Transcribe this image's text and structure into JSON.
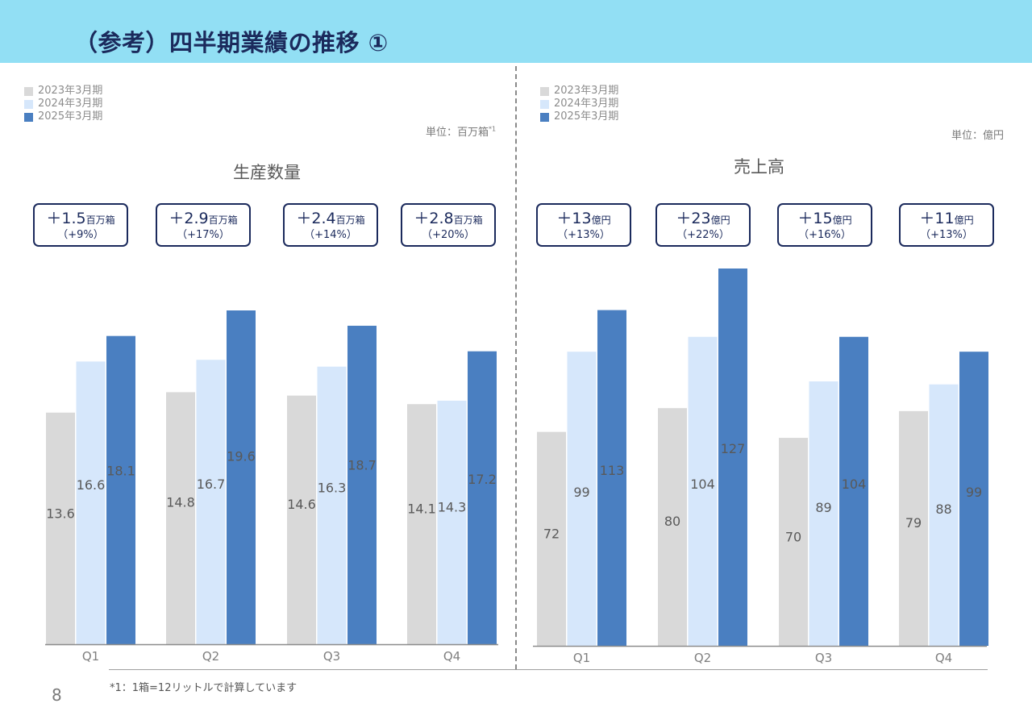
{
  "page": {
    "title": "（参考）四半期業績の推移 ①",
    "page_number": "8",
    "footnote": "*1：1箱=12リットルで計算しています"
  },
  "legend": [
    "2023年3月期",
    "2024年3月期",
    "2025年3月期"
  ],
  "colors": {
    "fy2023": "#d9d9d9",
    "fy2024": "#d6e7fb",
    "fy2025": "#4a7fc1",
    "header": "#92dff4",
    "navy": "#1b2a5c"
  },
  "left": {
    "unit_label": "単位：百万箱",
    "unit_sup": "*1",
    "callouts": [
      {
        "value": "＋1.5",
        "unit": "百万箱",
        "pct": "（+9%）"
      },
      {
        "value": "＋2.9",
        "unit": "百万箱",
        "pct": "（+17%）"
      },
      {
        "value": "＋2.4",
        "unit": "百万箱",
        "pct": "（+14%）"
      },
      {
        "value": "＋2.8",
        "unit": "百万箱",
        "pct": "（+20%）"
      }
    ]
  },
  "right": {
    "unit_label": "単位：億円",
    "callouts": [
      {
        "value": "＋13",
        "unit": "億円",
        "pct": "（+13%）"
      },
      {
        "value": "＋23",
        "unit": "億円",
        "pct": "（+22%）"
      },
      {
        "value": "＋15",
        "unit": "億円",
        "pct": "（+16%）"
      },
      {
        "value": "＋11",
        "unit": "億円",
        "pct": "（+13%）"
      }
    ]
  },
  "chart_data": [
    {
      "type": "bar",
      "title": "生産数量",
      "categories": [
        "Q1",
        "Q2",
        "Q3",
        "Q4"
      ],
      "series": [
        {
          "name": "2023年3月期",
          "values": [
            13.6,
            14.8,
            14.6,
            14.1
          ]
        },
        {
          "name": "2024年3月期",
          "values": [
            16.6,
            16.7,
            16.3,
            14.3
          ]
        },
        {
          "name": "2025年3月期",
          "values": [
            18.1,
            19.6,
            18.7,
            17.2
          ]
        }
      ],
      "ylim": [
        0,
        19.6
      ],
      "grid": false,
      "legend_position": "top-left"
    },
    {
      "type": "bar",
      "title": "売上高",
      "categories": [
        "Q1",
        "Q2",
        "Q3",
        "Q4"
      ],
      "series": [
        {
          "name": "2023年3月期",
          "values": [
            72,
            80,
            70,
            79
          ]
        },
        {
          "name": "2024年3月期",
          "values": [
            99,
            104,
            89,
            88
          ]
        },
        {
          "name": "2025年3月期",
          "values": [
            113,
            127,
            104,
            99
          ]
        }
      ],
      "ylim": [
        0,
        127
      ],
      "grid": false,
      "legend_position": "top-left"
    }
  ]
}
